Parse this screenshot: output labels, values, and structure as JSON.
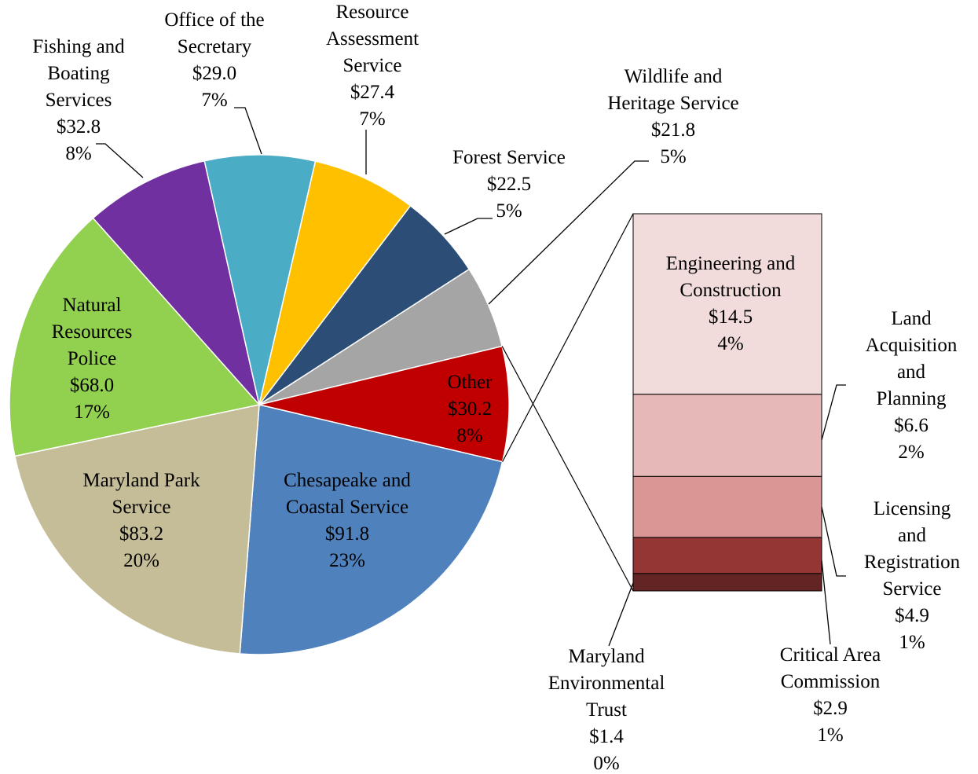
{
  "chart_data": {
    "type": "pie",
    "labels": [
      "Chesapeake and\nCoastal Service",
      "Maryland Park\nService",
      "Natural\nResources\nPolice",
      "Fishing and\nBoating\nServices",
      "Office of the\nSecretary",
      "Resource\nAssessment\nService",
      "Forest Service",
      "Wildlife and\nHeritage Service",
      "Other"
    ],
    "values": [
      91.8,
      83.2,
      68.0,
      32.8,
      29.0,
      27.4,
      22.5,
      21.8,
      30.2
    ],
    "value_labels": [
      "$91.8",
      "$83.2",
      "$68.0",
      "$32.8",
      "$29.0",
      "$27.4",
      "$22.5",
      "$21.8",
      "$30.2"
    ],
    "percent_labels": [
      "23%",
      "20%",
      "17%",
      "8%",
      "7%",
      "7%",
      "5%",
      "5%",
      "8%"
    ],
    "colors": [
      "#4f81bd",
      "#c4bd97",
      "#92d050",
      "#7030a0",
      "#4bacc6",
      "#ffc000",
      "#2c4d75",
      "#a5a5a5",
      "#c00000"
    ],
    "breakout": {
      "labels": [
        "Maryland\nEnvironmental\nTrust",
        "Critical Area\nCommission",
        "Licensing\nand\nRegistration\nService",
        "Land\nAcquisition\nand\nPlanning",
        "Engineering and\nConstruction"
      ],
      "values": [
        1.4,
        2.9,
        4.9,
        6.6,
        14.5
      ],
      "value_labels": [
        "$1.4",
        "$2.9",
        "$4.9",
        "$6.6",
        "$14.5"
      ],
      "percent_labels": [
        "0%",
        "1%",
        "1%",
        "2%",
        "4%"
      ],
      "colors": [
        "#632523",
        "#943634",
        "#d99694",
        "#e6b9b8",
        "#f2dcdb"
      ]
    }
  }
}
